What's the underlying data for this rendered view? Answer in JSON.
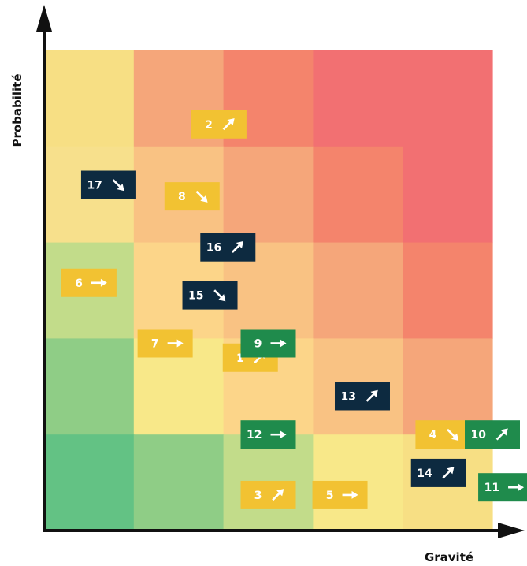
{
  "chart_data": {
    "type": "heatmap",
    "title": "",
    "xlabel": "Gravité",
    "ylabel": "Probabilité",
    "grid_size": [
      5,
      5
    ],
    "cell_colors": [
      [
        "#f7df84",
        "#f5a67a",
        "#f4846c",
        "#f27072",
        "#f27072"
      ],
      [
        "#f7e08c",
        "#f9c283",
        "#f5a67a",
        "#f4846c",
        "#f27072"
      ],
      [
        "#c2dc8a",
        "#fcd589",
        "#f9c283",
        "#f5a67a",
        "#f4846c"
      ],
      [
        "#8fcd86",
        "#f8e889",
        "#fcd589",
        "#f9c283",
        "#f5a67a"
      ],
      [
        "#63c284",
        "#8fcd86",
        "#c2dc8a",
        "#f8e889",
        "#f7df84"
      ]
    ],
    "status_colors": {
      "yellow": "#f2c232",
      "navy": "#0d2a40",
      "green": "#1f8b4c"
    },
    "risks": [
      {
        "id": "1",
        "gravite": 2.3,
        "probabilite": 1.8,
        "trend": "up",
        "status": "yellow"
      },
      {
        "id": "2",
        "gravite": 1.95,
        "probabilite": 4.23,
        "trend": "up",
        "status": "yellow"
      },
      {
        "id": "3",
        "gravite": 2.5,
        "probabilite": 0.37,
        "trend": "up",
        "status": "yellow"
      },
      {
        "id": "4",
        "gravite": 4.45,
        "probabilite": 1.0,
        "trend": "down",
        "status": "yellow"
      },
      {
        "id": "5",
        "gravite": 3.3,
        "probabilite": 0.37,
        "trend": "right",
        "status": "yellow"
      },
      {
        "id": "6",
        "gravite": 0.5,
        "probabilite": 2.58,
        "trend": "right",
        "status": "yellow"
      },
      {
        "id": "7",
        "gravite": 1.35,
        "probabilite": 1.95,
        "trend": "right",
        "status": "yellow"
      },
      {
        "id": "8",
        "gravite": 1.65,
        "probabilite": 3.48,
        "trend": "down",
        "status": "yellow"
      },
      {
        "id": "9",
        "gravite": 2.5,
        "probabilite": 1.95,
        "trend": "right",
        "status": "green"
      },
      {
        "id": "10",
        "gravite": 5.0,
        "probabilite": 1.0,
        "trend": "up",
        "status": "green"
      },
      {
        "id": "11",
        "gravite": 5.15,
        "probabilite": 0.45,
        "trend": "right",
        "status": "green"
      },
      {
        "id": "12",
        "gravite": 2.5,
        "probabilite": 1.0,
        "trend": "right",
        "status": "green"
      },
      {
        "id": "13",
        "gravite": 3.55,
        "probabilite": 1.4,
        "trend": "up",
        "status": "navy"
      },
      {
        "id": "14",
        "gravite": 4.4,
        "probabilite": 0.6,
        "trend": "up",
        "status": "navy"
      },
      {
        "id": "15",
        "gravite": 1.85,
        "probabilite": 2.45,
        "trend": "down",
        "status": "navy"
      },
      {
        "id": "16",
        "gravite": 2.05,
        "probabilite": 2.95,
        "trend": "up",
        "status": "navy"
      },
      {
        "id": "17",
        "gravite": 0.72,
        "probabilite": 3.6,
        "trend": "down",
        "status": "navy"
      }
    ]
  }
}
